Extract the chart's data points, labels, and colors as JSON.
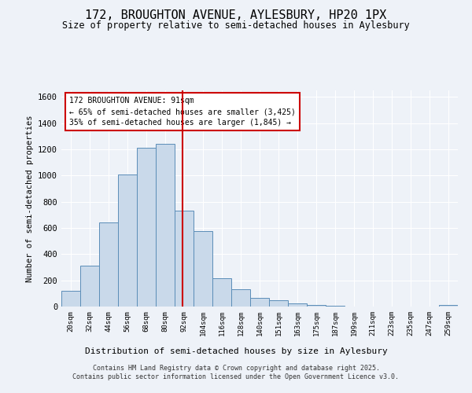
{
  "title": "172, BROUGHTON AVENUE, AYLESBURY, HP20 1PX",
  "subtitle": "Size of property relative to semi-detached houses in Aylesbury",
  "xlabel": "Distribution of semi-detached houses by size in Aylesbury",
  "ylabel": "Number of semi-detached properties",
  "categories": [
    "20sqm",
    "32sqm",
    "44sqm",
    "56sqm",
    "68sqm",
    "80sqm",
    "92sqm",
    "104sqm",
    "116sqm",
    "128sqm",
    "140sqm",
    "151sqm",
    "163sqm",
    "175sqm",
    "187sqm",
    "199sqm",
    "211sqm",
    "223sqm",
    "235sqm",
    "247sqm",
    "259sqm"
  ],
  "bar_values": [
    120,
    310,
    645,
    1010,
    1210,
    1240,
    735,
    575,
    215,
    130,
    65,
    47,
    25,
    15,
    5,
    0,
    0,
    0,
    0,
    0,
    15
  ],
  "annotation_title": "172 BROUGHTON AVENUE: 91sqm",
  "annotation_line1": "← 65% of semi-detached houses are smaller (3,425)",
  "annotation_line2": "35% of semi-detached houses are larger (1,845) →",
  "bar_color": "#c9d9ea",
  "bar_edge_color": "#5b8db8",
  "line_color": "#cc0000",
  "bg_color": "#eef2f8",
  "footnote1": "Contains HM Land Registry data © Crown copyright and database right 2025.",
  "footnote2": "Contains public sector information licensed under the Open Government Licence v3.0.",
  "ylim": [
    0,
    1650
  ],
  "yticks": [
    0,
    200,
    400,
    600,
    800,
    1000,
    1200,
    1400,
    1600
  ]
}
